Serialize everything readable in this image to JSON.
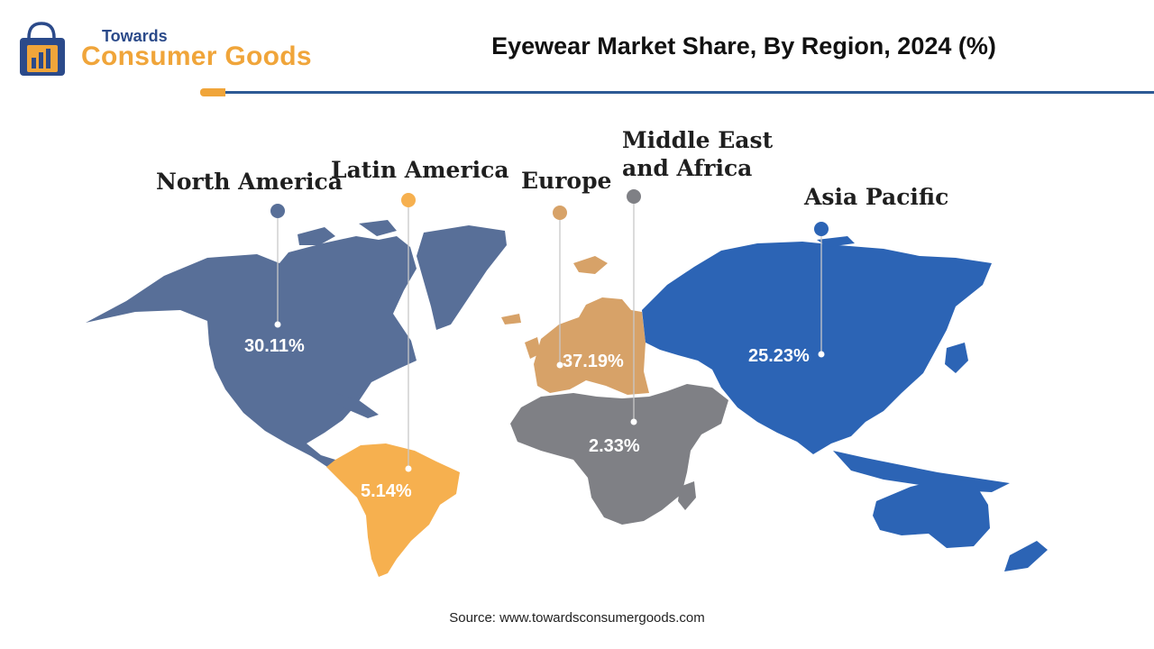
{
  "header": {
    "logo_top": "Towards",
    "logo_main": "Consumer Goods",
    "title": "Eyewear Market Share, By Region, 2024 (%)"
  },
  "regions": [
    {
      "name": "North America",
      "share": "30.11%",
      "color": "#586f98"
    },
    {
      "name": "Latin America",
      "share": "5.14%",
      "color": "#f6b04f"
    },
    {
      "name": "Europe",
      "share": "37.19%",
      "color": "#d7a268"
    },
    {
      "name": "Middle East and Africa",
      "line1": "Middle East",
      "line2": "and Africa",
      "share": "2.33%",
      "color": "#7f8085"
    },
    {
      "name": "Asia Pacific",
      "share": "25.23%",
      "color": "#2c64b5"
    }
  ],
  "source": "Source: www.towardsconsumergoods.com",
  "colors": {
    "accent": "#f0a53a",
    "brand_blue": "#2d5a95"
  }
}
